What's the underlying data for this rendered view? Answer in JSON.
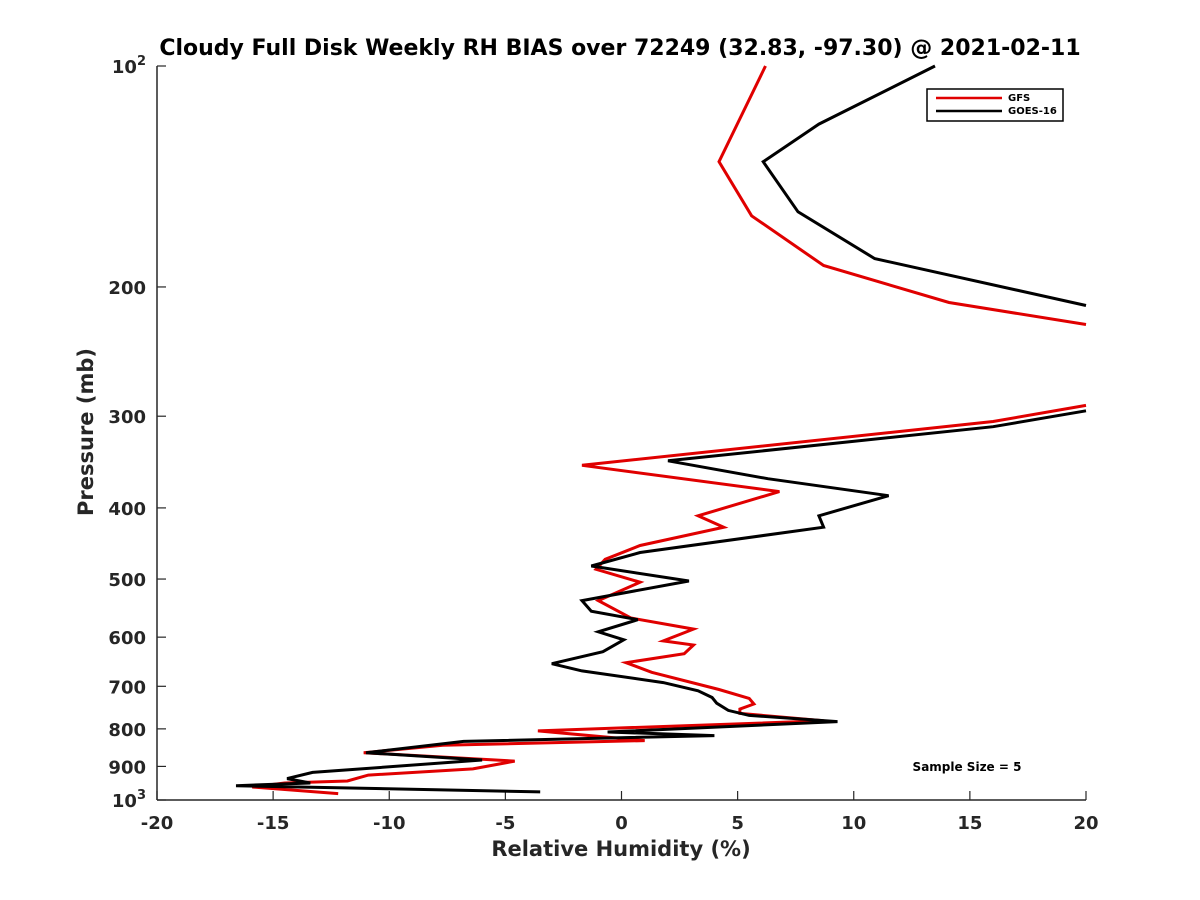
{
  "chart_data": {
    "type": "line",
    "title": "Cloudy Full Disk Weekly RH BIAS over 72249 (32.83, -97.30) @ 2021-02-11",
    "xlabel": "Relative Humidity (%)",
    "ylabel": "Pressure (mb)",
    "xlim": [
      -20,
      20
    ],
    "ylim": [
      100,
      1000
    ],
    "yscale": "log",
    "y_reversed": true,
    "grid": false,
    "legend_position": "top-right",
    "x_ticks": [
      "-20",
      "-15",
      "-10",
      "-5",
      "0",
      "5",
      "10",
      "15",
      "20"
    ],
    "y_ticks": [
      {
        "value": 100,
        "base": "10",
        "exp": "2"
      },
      {
        "value": 200,
        "label": "200"
      },
      {
        "value": 300,
        "label": "300"
      },
      {
        "value": 400,
        "label": "400"
      },
      {
        "value": 500,
        "label": "500"
      },
      {
        "value": 600,
        "label": "600"
      },
      {
        "value": 700,
        "label": "700"
      },
      {
        "value": 800,
        "label": "800"
      },
      {
        "value": 900,
        "label": "900"
      },
      {
        "value": 1000,
        "base": "10",
        "exp": "3"
      }
    ],
    "series": [
      {
        "name": "GFS",
        "color": "#e00000",
        "segments": [
          [
            [
              6.2,
              100
            ],
            [
              4.2,
              135
            ],
            [
              5.6,
              160
            ],
            [
              8.7,
              187
            ],
            [
              14.1,
              210
            ],
            [
              20,
              225
            ]
          ],
          [
            [
              20,
              290
            ],
            [
              16,
              305
            ],
            [
              -1.7,
              350
            ],
            [
              6.8,
              380
            ],
            [
              3.3,
              410
            ],
            [
              4.4,
              425
            ],
            [
              0.8,
              450
            ],
            [
              -0.7,
              470
            ],
            [
              -1.1,
              485
            ],
            [
              0.8,
              505
            ],
            [
              -1,
              535
            ],
            [
              0.4,
              565
            ],
            [
              3.1,
              585
            ],
            [
              1.8,
              607
            ],
            [
              3.1,
              615
            ],
            [
              2.7,
              632
            ],
            [
              0.2,
              650
            ],
            [
              1.3,
              670
            ],
            [
              4.2,
              707
            ],
            [
              5.5,
              727
            ],
            [
              5.7,
              740
            ],
            [
              5.1,
              752
            ],
            [
              5.1,
              762
            ],
            [
              8.7,
              780
            ],
            [
              -3.6,
              805
            ],
            [
              1,
              830
            ],
            [
              -7.7,
              842
            ],
            [
              -11.1,
              862
            ],
            [
              -4.6,
              885
            ],
            [
              -6.4,
              907
            ],
            [
              -10.9,
              925
            ],
            [
              -11.8,
              942
            ],
            [
              -14.5,
              948
            ],
            [
              -15.9,
              960
            ],
            [
              -12.2,
              980
            ]
          ]
        ]
      },
      {
        "name": "GOES-16",
        "color": "#000000",
        "segments": [
          [
            [
              13.5,
              100
            ],
            [
              8.5,
              120
            ],
            [
              6.1,
              135
            ],
            [
              7.6,
              158
            ],
            [
              10.9,
              183
            ],
            [
              20,
              212
            ]
          ],
          [
            [
              20,
              295
            ],
            [
              16,
              310
            ],
            [
              2,
              345
            ],
            [
              6.3,
              365
            ],
            [
              11.5,
              385
            ],
            [
              8.5,
              410
            ],
            [
              8.7,
              425
            ],
            [
              0.8,
              460
            ],
            [
              -1.3,
              480
            ],
            [
              2.9,
              503
            ],
            [
              -1.7,
              535
            ],
            [
              -1.3,
              553
            ],
            [
              0.7,
              568
            ],
            [
              -1,
              590
            ],
            [
              0.1,
              605
            ],
            [
              -0.8,
              628
            ],
            [
              -3,
              652
            ],
            [
              -1.7,
              667
            ],
            [
              1.8,
              692
            ],
            [
              3.3,
              710
            ],
            [
              3.9,
              725
            ],
            [
              4.1,
              738
            ],
            [
              4.6,
              755
            ],
            [
              5.5,
              767
            ],
            [
              9.3,
              782
            ],
            [
              -0.6,
              808
            ],
            [
              4,
              817
            ],
            [
              -6.8,
              832
            ],
            [
              -11,
              862
            ],
            [
              -6,
              882
            ],
            [
              -13.3,
              917
            ],
            [
              -14.4,
              935
            ],
            [
              -13.4,
              948
            ],
            [
              -16.6,
              956
            ],
            [
              -3.5,
              975
            ]
          ]
        ]
      }
    ],
    "annotation": "Sample Size = 5"
  }
}
